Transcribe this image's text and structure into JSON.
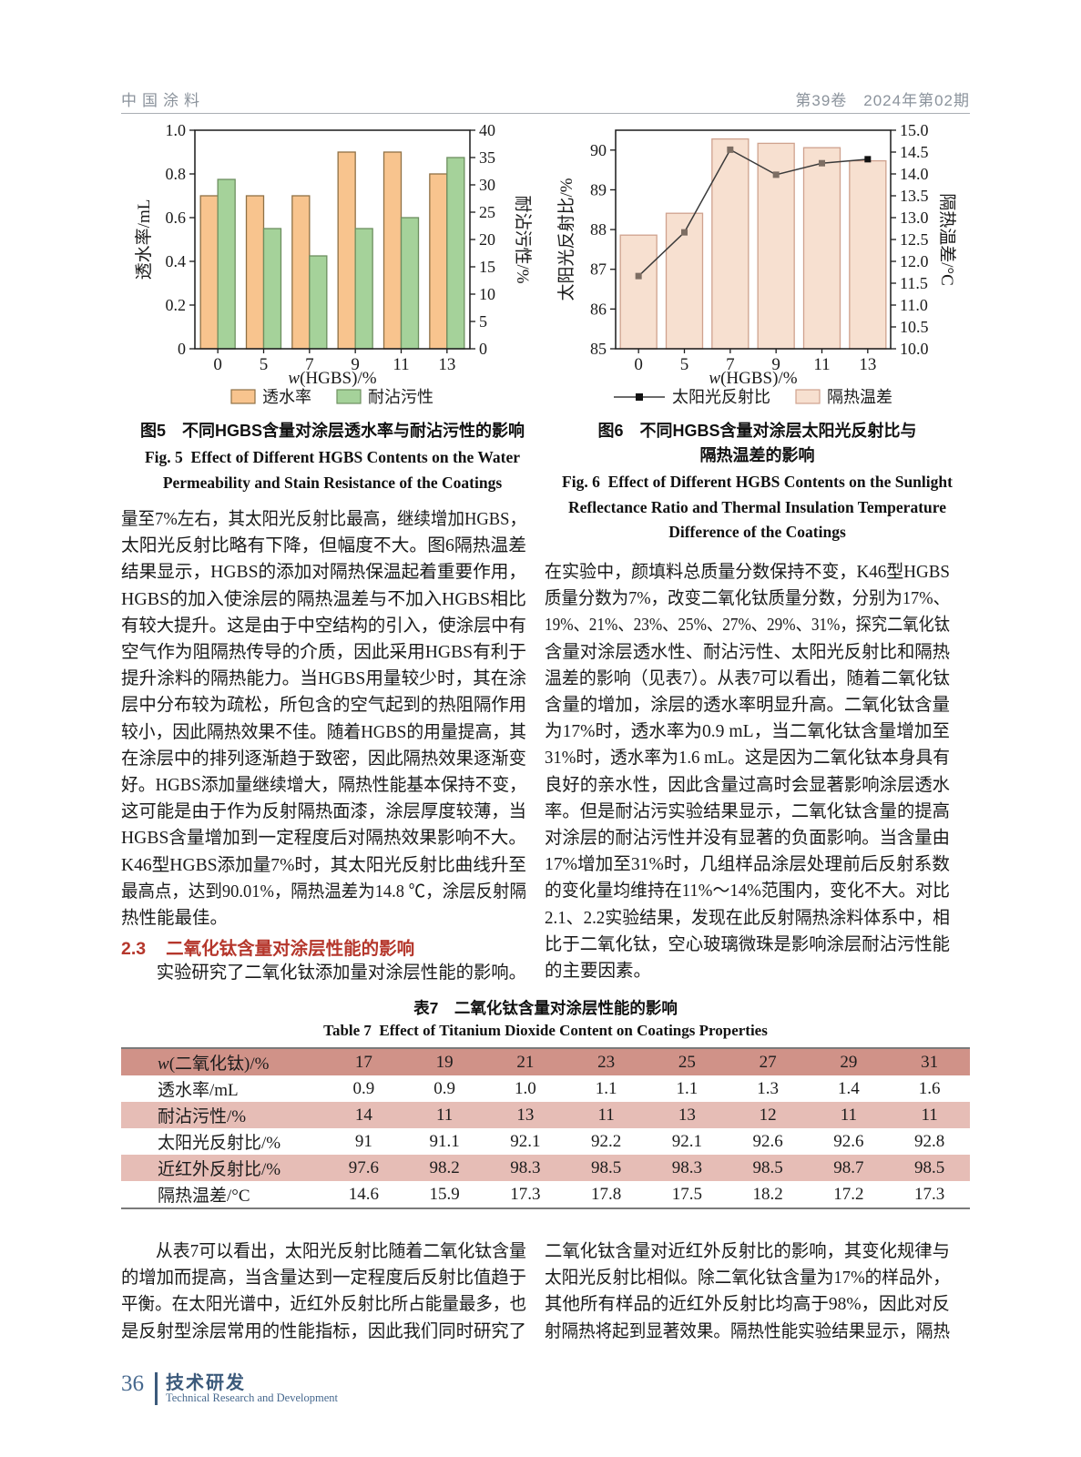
{
  "page": {
    "header_left": "中国涂料",
    "header_right": "第39卷　2024年第02期",
    "footer": {
      "page_number": "36",
      "section_cn": "技术研发",
      "section_en": "Technical Research and Development"
    }
  },
  "figure5": {
    "caption_cn": "图5　不同HGBS含量对涂层透水率与耐沾污性的影响",
    "caption_en_lines": [
      "Fig. 5 Effect of Different HGBS Contents on the Water",
      "Permeability and Stain Resistance of the Coatings"
    ]
  },
  "figure6": {
    "caption_cn_lines": [
      "图6　不同HGBS含量对涂层太阳光反射比与",
      "隔热温差的影响"
    ],
    "caption_en_lines": [
      "Fig. 6 Effect of Different HGBS Contents on the Sunlight",
      "Reflectance Ratio and Thermal Insulation Temperature",
      "Difference of the Coatings"
    ]
  },
  "chart_data": [
    {
      "type": "bar",
      "categories": [
        "0",
        "5",
        "7",
        "9",
        "11",
        "13"
      ],
      "xlabel_italic": "w",
      "xlabel_rest": "(HGBS)/%",
      "ylabel_left": "透水率/mL",
      "ylabel_right": "耐沾污性/%",
      "ylim_left": [
        0,
        1.0
      ],
      "yticks_left": [
        "0",
        "0.2",
        "0.4",
        "0.6",
        "0.8",
        "1.0"
      ],
      "ylim_right": [
        0,
        40
      ],
      "yticks_right": [
        "0",
        "5",
        "10",
        "15",
        "20",
        "25",
        "30",
        "35",
        "40"
      ],
      "legend_position": "bottom",
      "series": [
        {
          "name": "透水率",
          "style": "bar",
          "axis": "left",
          "values": [
            0.7,
            0.7,
            0.7,
            0.9,
            0.9,
            0.8
          ],
          "fill": "#f8c48e",
          "stroke": "#8f7146"
        },
        {
          "name": "耐沾污性",
          "style": "bar",
          "axis": "right",
          "values": [
            31,
            22,
            17,
            22,
            24,
            35
          ],
          "fill": "#a5d29a",
          "stroke": "#6d8f60"
        }
      ]
    },
    {
      "type": "bar+line",
      "categories": [
        "0",
        "5",
        "7",
        "9",
        "11",
        "13"
      ],
      "xlabel_italic": "w",
      "xlabel_rest": "(HGBS)/%",
      "ylabel_left": "太阳光反射比/%",
      "ylabel_right": "隔热温差/°C",
      "ylim_left": [
        85,
        90.5
      ],
      "yticks_left": [
        "85",
        "86",
        "87",
        "88",
        "89",
        "90"
      ],
      "ylim_right": [
        10.0,
        15.0
      ],
      "yticks_right": [
        "10.0",
        "10.5",
        "11.0",
        "11.5",
        "12.0",
        "12.5",
        "13.0",
        "13.5",
        "14.0",
        "14.5",
        "15.0"
      ],
      "legend_position": "bottom",
      "series": [
        {
          "name": "太阳光反射比",
          "style": "line",
          "axis": "left",
          "values": [
            86.83,
            87.93,
            90.01,
            89.38,
            89.67,
            89.77
          ],
          "stroke": "#3a3a3a",
          "marker": "#7d6e63"
        },
        {
          "name": "隔热温差",
          "style": "bar",
          "axis": "right",
          "values": [
            12.6,
            13.1,
            14.8,
            14.7,
            14.6,
            14.3
          ],
          "fill": "#f7e0d0",
          "stroke": "#cfa28e"
        }
      ]
    }
  ],
  "columns": {
    "left_top": [
      "量至7%左右，其太阳光反射比最高，继续增加HGBS，",
      "太阳光反射比略有下降，但幅度不大。图6隔热温差",
      "结果显示，HGBS的添加对隔热保温起着重要作用，",
      "HGBS的加入使涂层的隔热温差与不加入HGBS相比",
      "有较大提升。这是由于中空结构的引入，使涂层中有",
      "空气作为阻隔热传导的介质，因此采用HGBS有利于",
      "提升涂料的隔热能力。当HGBS用量较少时，其在涂",
      "层中分布较为疏松，所包含的空气起到的热阻隔作用",
      "较小，因此隔热效果不佳。随着HGBS的用量提高，其",
      "在涂层中的排列逐渐趋于致密，因此隔热效果逐渐变",
      "好。HGBS添加量继续增大，隔热性能基本保持不变，",
      "这可能是由于作为反射隔热面漆，涂层厚度较薄，当",
      "HGBS含量增加到一定程度后对隔热效果影响不大。",
      "K46型HGBS添加量7%时，其太阳光反射比曲线升至",
      "最高点，达到90.01%，隔热温差为14.8 ℃，涂层反射隔",
      "热性能最佳。"
    ],
    "section_heading": {
      "number": "2.3",
      "title": "二氧化钛含量对涂层性能的影响"
    },
    "left_after": [
      "　　实验研究了二氧化钛添加量对涂层性能的影响。"
    ],
    "right_top": [
      "在实验中，颜填料总质量分数保持不变，K46型HGBS",
      "质量分数为7%，改变二氧化钛质量分数，分别为17%、",
      "19%、21%、23%、25%、27%、29%、31%，探究二氧化钛",
      "含量对涂层透水性、耐沾污性、太阳光反射比和隔热",
      "温差的影响（见表7）。从表7可以看出，随着二氧化钛",
      "含量的增加，涂层的透水率明显升高。二氧化钛含量",
      "为17%时，透水率为0.9 mL，当二氧化钛含量增加至",
      "31%时，透水率为1.6 mL。这是因为二氧化钛本身具有",
      "良好的亲水性，因此含量过高时会显著影响涂层透水",
      "率。但是耐沾污实验结果显示，二氧化钛含量的提高",
      "对涂层的耐沾污性并没有显著的负面影响。当含量由",
      "17%增加至31%时，几组样品涂层处理前后反射系数",
      "的变化量均维持在11%～14%范围内，变化不大。对比",
      "2.1、2.2实验结果，发现在此反射隔热涂料体系中，相",
      "比于二氧化钛，空心玻璃微珠是影响涂层耐沾污性能",
      "的主要因素。"
    ],
    "bottom_left": [
      "　　从表7可以看出，太阳光反射比随着二氧化钛含量",
      "的增加而提高，当含量达到一定程度后反射比值趋于",
      "平衡。在太阳光谱中，近红外反射比所占能量最多，也",
      "是反射型涂层常用的性能指标，因此我们同时研究了"
    ],
    "bottom_right": [
      "二氧化钛含量对近红外反射比的影响，其变化规律与",
      "太阳光反射比相似。除二氧化钛含量为17%的样品外，",
      "其他所有样品的近红外反射比均高于98%，因此对反",
      "射隔热将起到显著效果。隔热性能实验结果显示，隔热"
    ]
  },
  "table7": {
    "caption_cn": "表7　二氧化钛含量对涂层性能的影响",
    "caption_en": "Table 7 Effect of Titanium Dioxide Content on Coatings Properties",
    "rows": [
      {
        "label": "w(二氧化钛)/%",
        "tone": "dark",
        "values": [
          "17",
          "19",
          "21",
          "23",
          "25",
          "27",
          "29",
          "31"
        ]
      },
      {
        "label": "透水率/mL",
        "tone": "",
        "values": [
          "0.9",
          "0.9",
          "1.0",
          "1.1",
          "1.1",
          "1.3",
          "1.4",
          "1.6"
        ]
      },
      {
        "label": "耐沾污性/%",
        "tone": "light",
        "values": [
          "14",
          "11",
          "13",
          "11",
          "13",
          "12",
          "11",
          "11"
        ]
      },
      {
        "label": "太阳光反射比/%",
        "tone": "",
        "values": [
          "91",
          "91.1",
          "92.1",
          "92.2",
          "92.1",
          "92.6",
          "92.6",
          "92.8"
        ]
      },
      {
        "label": "近红外反射比/%",
        "tone": "light",
        "values": [
          "97.6",
          "98.2",
          "98.3",
          "98.5",
          "98.3",
          "98.5",
          "98.7",
          "98.5"
        ]
      },
      {
        "label": "隔热温差/°C",
        "tone": "",
        "values": [
          "14.6",
          "15.9",
          "17.3",
          "17.8",
          "17.5",
          "18.2",
          "17.2",
          "17.3"
        ]
      }
    ]
  }
}
